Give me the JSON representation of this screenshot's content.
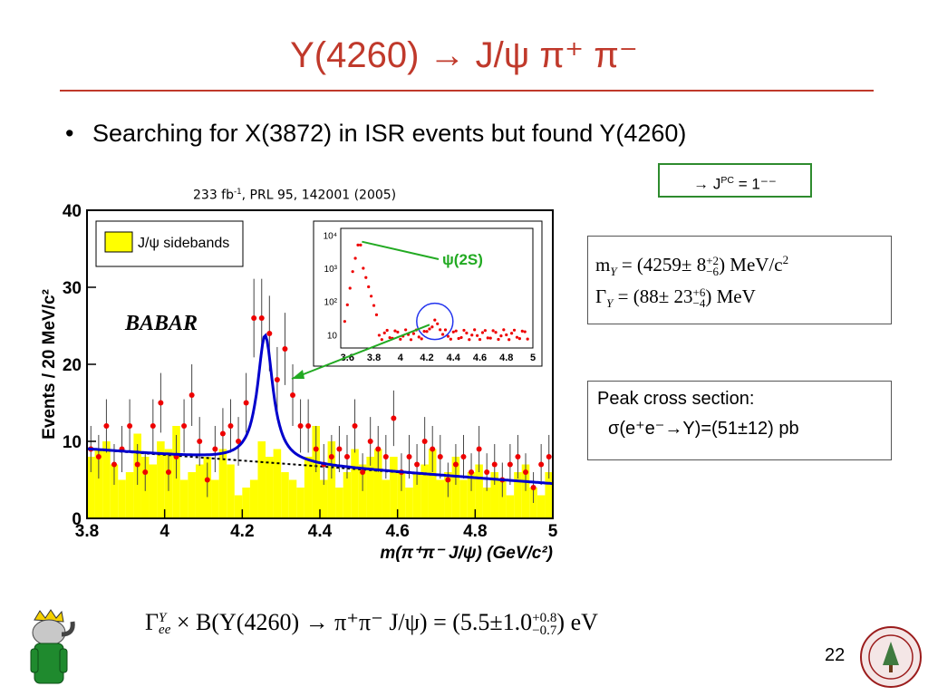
{
  "slide": {
    "title": "Y(4260) → J/ψ π⁺ π⁻",
    "bullet": "Searching for X(3872) in ISR events but found Y(4260)",
    "jpc": {
      "arrow": "→ J",
      "sup": "PC",
      "value": " = 1⁻⁻"
    },
    "citation": {
      "pre": "233 fb",
      "sup": "-1",
      "post": ", PRL 95, 142001 (2005)"
    },
    "mass": {
      "label": "m",
      "sub": "Y",
      "eq": " = (4259± 8",
      "up": "+2",
      "down": "−6",
      "unit": ") MeV/c",
      "unitsup": "2"
    },
    "width": {
      "label": "Γ",
      "sub": "Y",
      "eq": " = (88± 23",
      "up": "+6",
      "down": "−4",
      "unit": ") MeV"
    },
    "xsec": {
      "line1": "Peak cross section:",
      "line2": "σ(e⁺e⁻→Y)=(51±12) pb"
    },
    "formula": {
      "gamma": "Γ",
      "sup": "Y",
      "sub": "ee",
      "body": " × B(Y(4260) → π⁺π⁻ J/ψ) = (5.5±1.0",
      "up": "+0.8",
      "down": "−0.7",
      "end": ") eV"
    },
    "page_number": "22"
  },
  "colors": {
    "title": "#c0392b",
    "fit": "#0000cc",
    "points": "#ee0000",
    "sideband": "#ffff00",
    "arrow": "#22aa22"
  },
  "chart_data": [
    {
      "type": "bar",
      "xlabel": "m(π⁺π⁻ J/ψ) (GeV/c²)",
      "ylabel": "Events / 20 MeV/c²",
      "xlim": [
        3.8,
        5.0
      ],
      "ylim": [
        0,
        40
      ],
      "xticks": [
        "3.8",
        "4",
        "4.2",
        "4.4",
        "4.6",
        "4.8",
        "5"
      ],
      "yticks": [
        "0",
        "10",
        "20",
        "30",
        "40"
      ],
      "legend": "J/ψ sidebands",
      "logo": "BABAR",
      "data_points": [
        {
          "x": 3.81,
          "y": 9
        },
        {
          "x": 3.83,
          "y": 8
        },
        {
          "x": 3.85,
          "y": 12
        },
        {
          "x": 3.87,
          "y": 7
        },
        {
          "x": 3.89,
          "y": 9
        },
        {
          "x": 3.91,
          "y": 12
        },
        {
          "x": 3.93,
          "y": 7
        },
        {
          "x": 3.95,
          "y": 6
        },
        {
          "x": 3.97,
          "y": 12
        },
        {
          "x": 3.99,
          "y": 15
        },
        {
          "x": 4.01,
          "y": 6
        },
        {
          "x": 4.03,
          "y": 8
        },
        {
          "x": 4.05,
          "y": 12
        },
        {
          "x": 4.07,
          "y": 16
        },
        {
          "x": 4.09,
          "y": 10
        },
        {
          "x": 4.11,
          "y": 5
        },
        {
          "x": 4.13,
          "y": 9
        },
        {
          "x": 4.15,
          "y": 11
        },
        {
          "x": 4.17,
          "y": 12
        },
        {
          "x": 4.19,
          "y": 10
        },
        {
          "x": 4.21,
          "y": 15
        },
        {
          "x": 4.23,
          "y": 26
        },
        {
          "x": 4.25,
          "y": 26
        },
        {
          "x": 4.27,
          "y": 24
        },
        {
          "x": 4.29,
          "y": 18
        },
        {
          "x": 4.31,
          "y": 22
        },
        {
          "x": 4.33,
          "y": 16
        },
        {
          "x": 4.35,
          "y": 12
        },
        {
          "x": 4.37,
          "y": 12
        },
        {
          "x": 4.39,
          "y": 9
        },
        {
          "x": 4.41,
          "y": 7
        },
        {
          "x": 4.43,
          "y": 8
        },
        {
          "x": 4.45,
          "y": 9
        },
        {
          "x": 4.47,
          "y": 8
        },
        {
          "x": 4.49,
          "y": 12
        },
        {
          "x": 4.51,
          "y": 6
        },
        {
          "x": 4.53,
          "y": 10
        },
        {
          "x": 4.55,
          "y": 9
        },
        {
          "x": 4.57,
          "y": 8
        },
        {
          "x": 4.59,
          "y": 13
        },
        {
          "x": 4.61,
          "y": 6
        },
        {
          "x": 4.63,
          "y": 8
        },
        {
          "x": 4.65,
          "y": 7
        },
        {
          "x": 4.67,
          "y": 10
        },
        {
          "x": 4.69,
          "y": 9
        },
        {
          "x": 4.71,
          "y": 8
        },
        {
          "x": 4.73,
          "y": 5
        },
        {
          "x": 4.75,
          "y": 7
        },
        {
          "x": 4.77,
          "y": 8
        },
        {
          "x": 4.79,
          "y": 6
        },
        {
          "x": 4.81,
          "y": 9
        },
        {
          "x": 4.83,
          "y": 6
        },
        {
          "x": 4.85,
          "y": 7
        },
        {
          "x": 4.87,
          "y": 5
        },
        {
          "x": 4.89,
          "y": 7
        },
        {
          "x": 4.91,
          "y": 8
        },
        {
          "x": 4.93,
          "y": 6
        },
        {
          "x": 4.95,
          "y": 4
        },
        {
          "x": 4.97,
          "y": 7
        },
        {
          "x": 4.99,
          "y": 8
        }
      ],
      "sideband_hist": [
        8,
        9,
        10,
        7,
        5,
        6,
        11,
        8,
        7,
        10,
        9,
        12,
        5,
        6,
        7,
        8,
        5,
        9,
        7,
        3,
        4,
        5,
        10,
        8,
        9,
        6,
        5,
        4,
        8,
        12,
        5,
        10,
        4,
        6,
        9,
        7,
        8,
        9,
        5,
        8,
        6,
        4,
        6,
        7,
        9,
        5,
        6,
        8,
        5,
        6,
        7,
        4,
        6,
        5,
        3,
        6,
        7,
        4,
        3,
        6
      ],
      "background_line": {
        "x": [
          3.8,
          5.0
        ],
        "y": [
          9.0,
          4.5
        ]
      },
      "peak": {
        "mass": 4.259,
        "width": 0.088,
        "height": 16.5
      }
    },
    {
      "type": "scatter",
      "title": "ψ(2S)",
      "yscale": "log",
      "xlim": [
        3.55,
        5.0
      ],
      "xticks": [
        "3.6",
        "3.8",
        "4",
        "4.2",
        "4.4",
        "4.6",
        "4.8",
        "5"
      ],
      "yticks": [
        "10",
        "10²",
        "10³",
        "10⁴"
      ],
      "points_note": "log-scale view with large ψ(2S) peak near 3.69"
    }
  ]
}
